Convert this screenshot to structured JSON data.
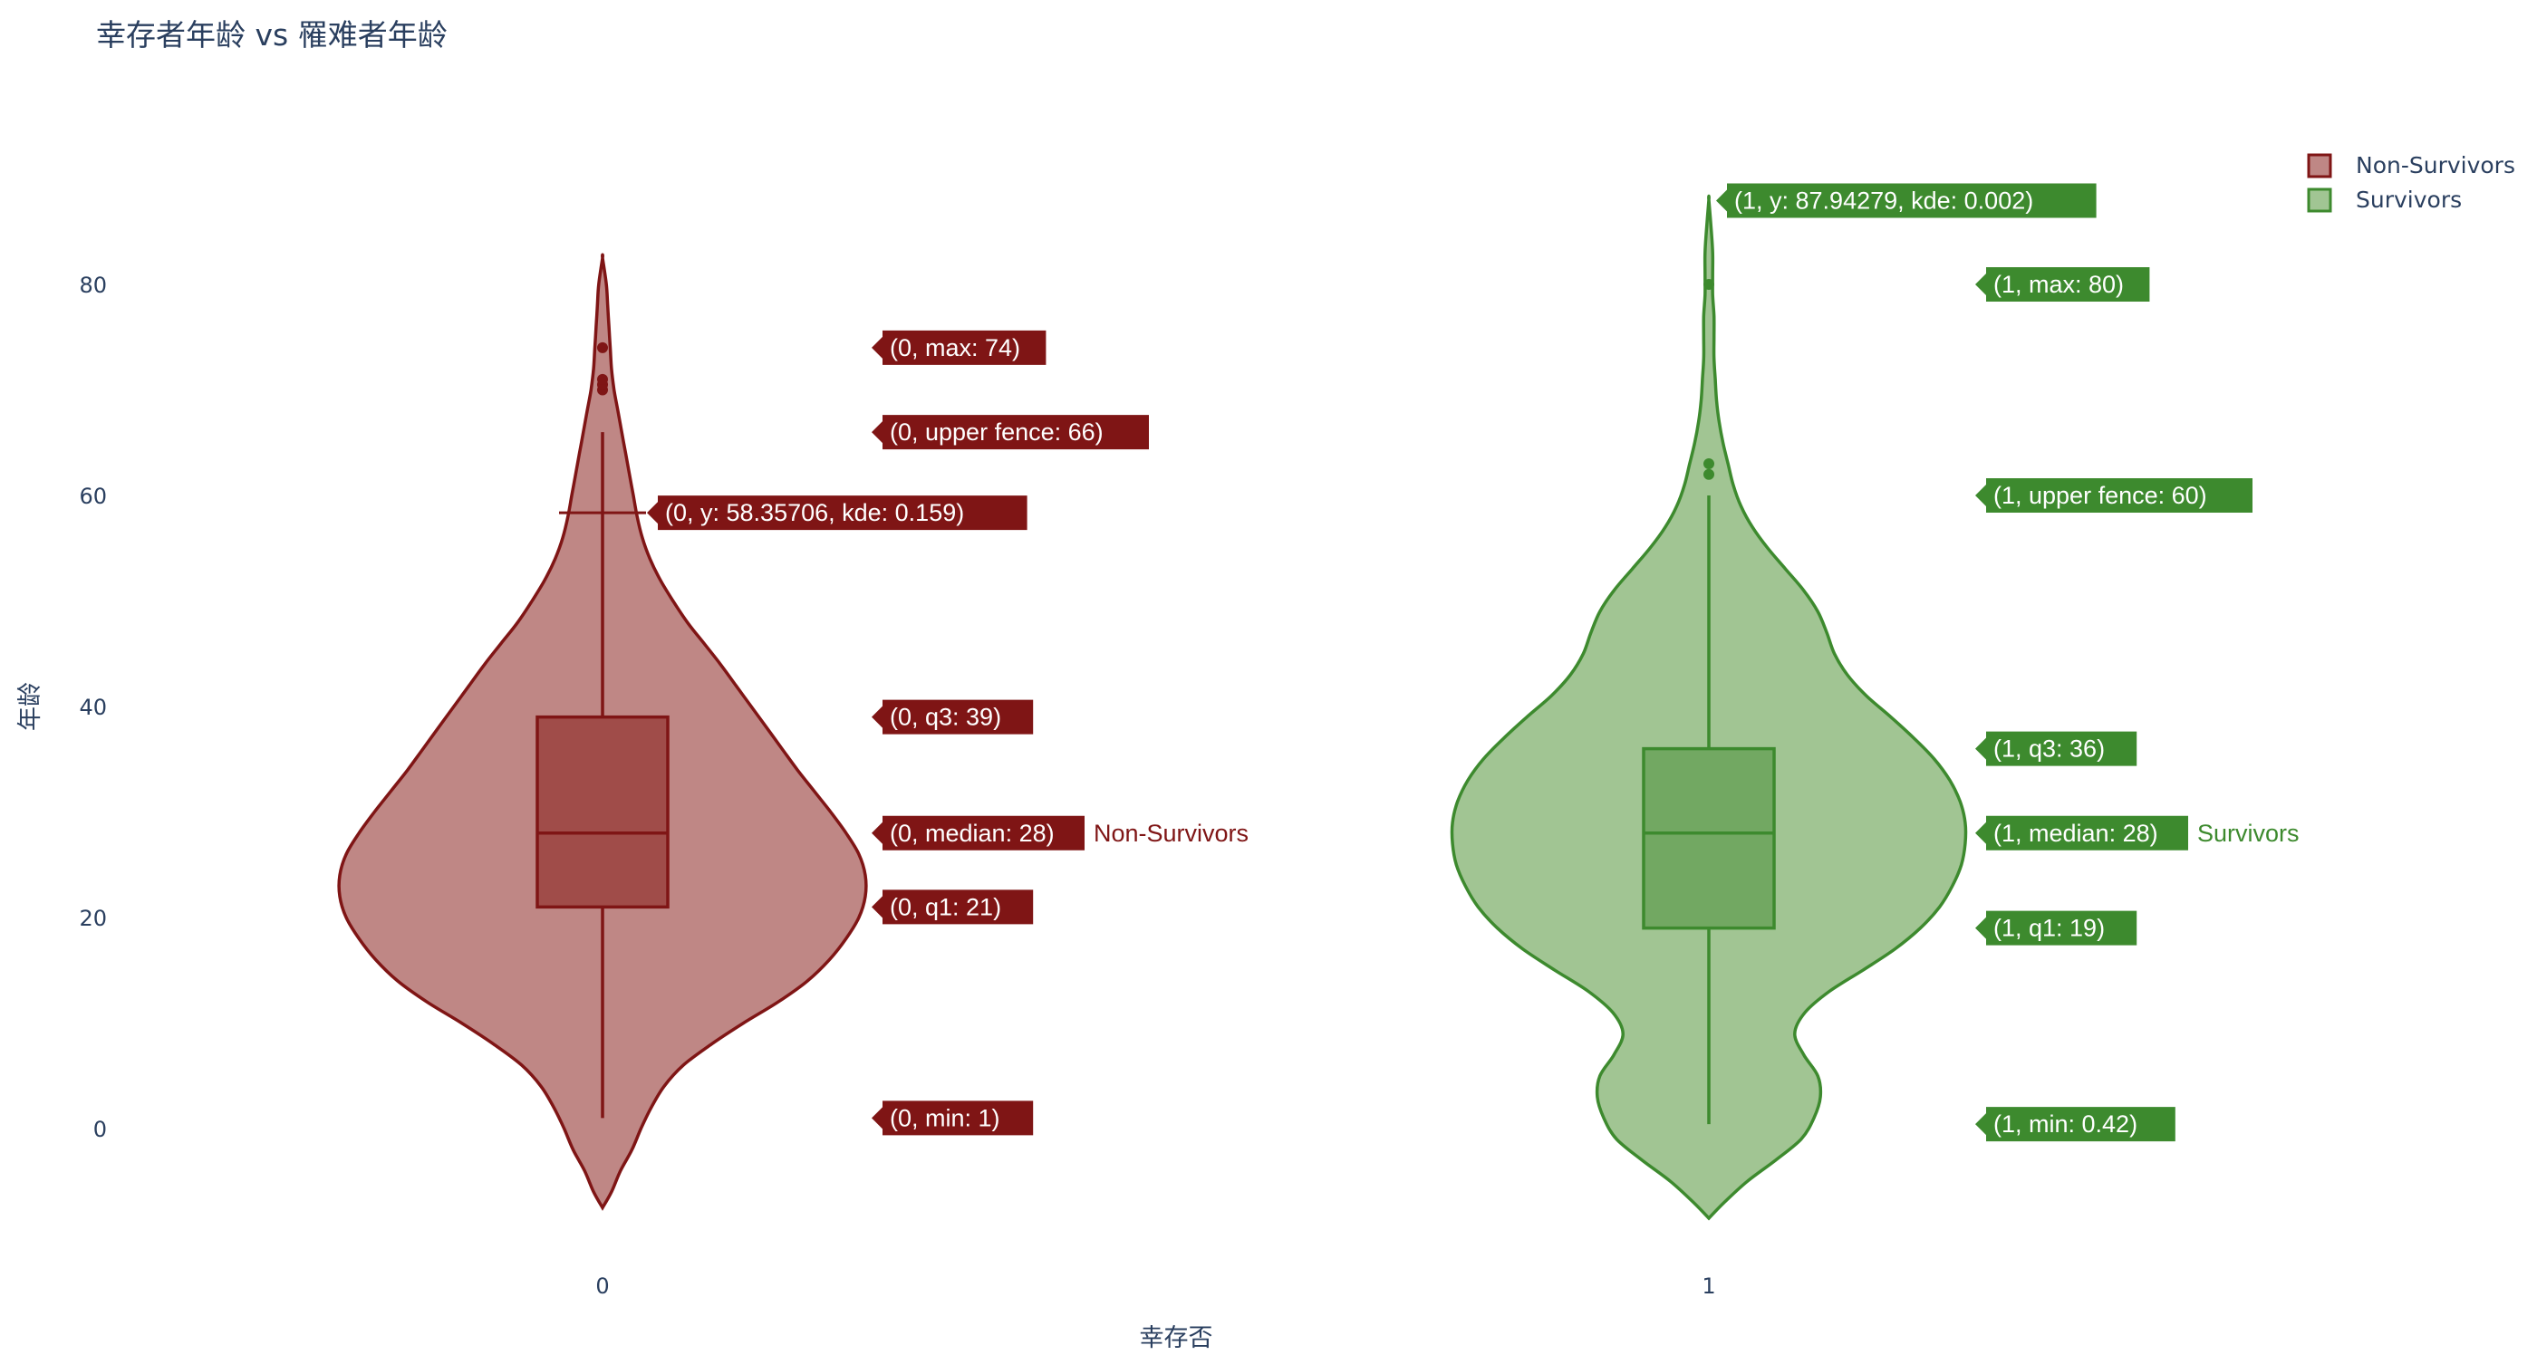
{
  "chart_data": {
    "type": "violin",
    "title": "幸存者年龄 vs 罹难者年龄",
    "xlabel": "幸存否",
    "ylabel": "年龄",
    "categories": [
      "0",
      "1"
    ],
    "y_ticks": [
      0,
      20,
      40,
      60,
      80
    ],
    "ylim": [
      -10,
      92
    ],
    "grid": false,
    "legend_position": "top-right",
    "box_inside": true,
    "series": [
      {
        "name": "Non-Survivors",
        "category": "0",
        "line_color": "#7f1515",
        "fill_color": "#bf8785",
        "box_fill_color": "#a04c49",
        "stats": {
          "min": 1,
          "q1": 21,
          "median": 28,
          "q3": 39,
          "upper_fence": 66,
          "max": 74
        },
        "outliers": [
          70,
          70.5,
          71,
          74
        ],
        "kde_range": [
          -7.5,
          82.5
        ],
        "kde_hover": {
          "y": 58.35706,
          "kde": 0.159
        },
        "labels": {
          "max": "(0, max: 74)",
          "upper_fence": "(0, upper fence: 66)",
          "kde": "(0, y: 58.35706, kde: 0.159)",
          "q3": "(0, q3: 39)",
          "median": "(0, median: 28)",
          "q1": "(0, q1: 21)",
          "min": "(0, min: 1)"
        },
        "density": [
          [
            -7.5,
            0.0
          ],
          [
            -6,
            0.007
          ],
          [
            -4,
            0.014
          ],
          [
            -2,
            0.023
          ],
          [
            0,
            0.03
          ],
          [
            2,
            0.038
          ],
          [
            4,
            0.048
          ],
          [
            6,
            0.063
          ],
          [
            8,
            0.085
          ],
          [
            10,
            0.11
          ],
          [
            12,
            0.137
          ],
          [
            14,
            0.16
          ],
          [
            16,
            0.177
          ],
          [
            18,
            0.19
          ],
          [
            20,
            0.2
          ],
          [
            22,
            0.205
          ],
          [
            24,
            0.205
          ],
          [
            26,
            0.2
          ],
          [
            28,
            0.19
          ],
          [
            30,
            0.178
          ],
          [
            32,
            0.165
          ],
          [
            34,
            0.152
          ],
          [
            36,
            0.14
          ],
          [
            38,
            0.128
          ],
          [
            40,
            0.116
          ],
          [
            42,
            0.104
          ],
          [
            44,
            0.092
          ],
          [
            46,
            0.079
          ],
          [
            48,
            0.066
          ],
          [
            50,
            0.055
          ],
          [
            52,
            0.045
          ],
          [
            54,
            0.037
          ],
          [
            56,
            0.031
          ],
          [
            58,
            0.027
          ],
          [
            60,
            0.024
          ],
          [
            62,
            0.021
          ],
          [
            64,
            0.018
          ],
          [
            66,
            0.015
          ],
          [
            68,
            0.012
          ],
          [
            70,
            0.009
          ],
          [
            72,
            0.007
          ],
          [
            74,
            0.006
          ],
          [
            76,
            0.005
          ],
          [
            78,
            0.004
          ],
          [
            80,
            0.003
          ],
          [
            82.5,
            0.0
          ]
        ]
      },
      {
        "name": "Survivors",
        "category": "1",
        "line_color": "#3d8a2e",
        "fill_color": "#a1c593",
        "box_fill_color": "#72a862",
        "stats": {
          "min": 0.42,
          "q1": 19,
          "median": 28,
          "q3": 36,
          "upper_fence": 60,
          "max": 80
        },
        "outliers": [
          62,
          63,
          80
        ],
        "kde_range": [
          -8.5,
          88
        ],
        "kde_hover": {
          "y": 87.94279,
          "kde": 0.002
        },
        "labels": {
          "kde": "(1, y: 87.94279, kde: 0.002)",
          "max": "(1, max: 80)",
          "upper_fence": "(1, upper fence: 60)",
          "q3": "(1, q3: 36)",
          "median": "(1, median: 28)",
          "q1": "(1, q1: 19)",
          "min": "(1, min: 0.42)"
        },
        "density": [
          [
            -8.5,
            0.0
          ],
          [
            -7,
            0.012
          ],
          [
            -5,
            0.03
          ],
          [
            -3,
            0.052
          ],
          [
            -1,
            0.072
          ],
          [
            1,
            0.082
          ],
          [
            3,
            0.087
          ],
          [
            5,
            0.085
          ],
          [
            7,
            0.074
          ],
          [
            9,
            0.067
          ],
          [
            11,
            0.075
          ],
          [
            13,
            0.094
          ],
          [
            15,
            0.12
          ],
          [
            17,
            0.145
          ],
          [
            19,
            0.165
          ],
          [
            21,
            0.18
          ],
          [
            23,
            0.19
          ],
          [
            25,
            0.197
          ],
          [
            27,
            0.2
          ],
          [
            29,
            0.2
          ],
          [
            31,
            0.196
          ],
          [
            33,
            0.188
          ],
          [
            35,
            0.176
          ],
          [
            37,
            0.16
          ],
          [
            39,
            0.142
          ],
          [
            41,
            0.123
          ],
          [
            43,
            0.108
          ],
          [
            45,
            0.098
          ],
          [
            47,
            0.092
          ],
          [
            49,
            0.085
          ],
          [
            51,
            0.074
          ],
          [
            53,
            0.06
          ],
          [
            55,
            0.046
          ],
          [
            57,
            0.034
          ],
          [
            59,
            0.025
          ],
          [
            61,
            0.019
          ],
          [
            63,
            0.015
          ],
          [
            65,
            0.011
          ],
          [
            67,
            0.008
          ],
          [
            69,
            0.006
          ],
          [
            71,
            0.005
          ],
          [
            73,
            0.004
          ],
          [
            75,
            0.004
          ],
          [
            77,
            0.004
          ],
          [
            79,
            0.003
          ],
          [
            81,
            0.003
          ],
          [
            83,
            0.003
          ],
          [
            85,
            0.002
          ],
          [
            88,
            0.0
          ]
        ]
      }
    ],
    "trace_name_labels": [
      "Non-Survivors",
      "Survivors"
    ]
  }
}
